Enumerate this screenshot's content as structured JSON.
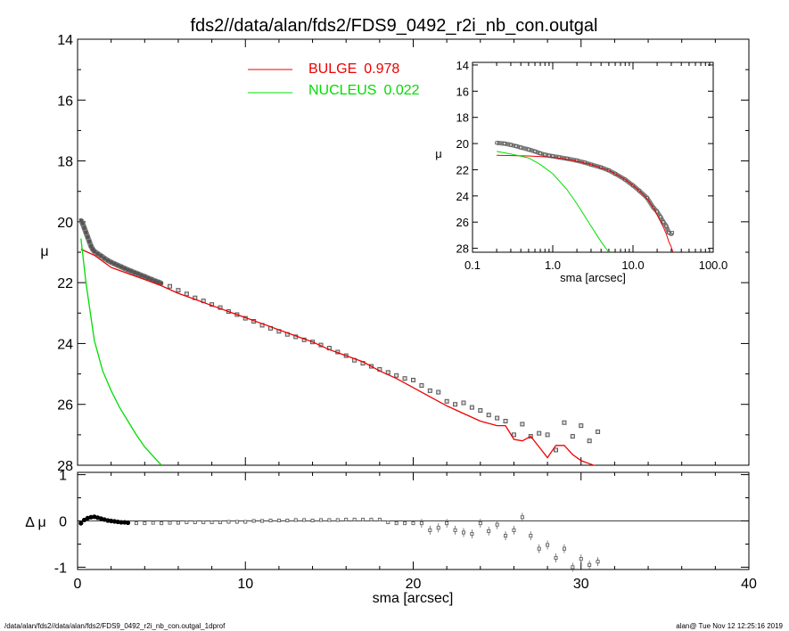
{
  "page": {
    "title": "fds2//data/alan/fds2/FDS9_0492_r2i_nb_con.outgal",
    "footer_left": "/data/alan/fds2//data/alan/fds2/FDS9_0492_r2i_nb_con.outgal_1dprof",
    "footer_right": "alan@  Tue Nov 12 12:25:16 2019"
  },
  "colors": {
    "bulge": "#ee0000",
    "nucleus": "#00dd00",
    "data": "#808080",
    "axis": "#000000"
  },
  "chart_data": [
    {
      "id": "main",
      "type": "scatter",
      "ylabel": "μ",
      "xlim": [
        0,
        40
      ],
      "ylim": [
        28,
        14
      ],
      "y_inverted": true,
      "xticks": [
        0,
        10,
        20,
        30,
        40
      ],
      "yticks": [
        14,
        16,
        18,
        20,
        22,
        24,
        26,
        28
      ],
      "ytick_labels": [
        "14",
        "16",
        "18",
        "20",
        "22",
        "24",
        "26",
        "28"
      ],
      "legend": {
        "placement": "top-center",
        "entries": [
          {
            "label": "BULGE",
            "value": "0.978",
            "color": "#ee0000"
          },
          {
            "label": "NUCLEUS",
            "value": "0.022",
            "color": "#00dd00"
          }
        ]
      },
      "series": [
        {
          "name": "BULGE",
          "style": "line",
          "color": "#ee0000",
          "x": [
            0.2,
            1,
            2,
            3,
            4,
            5,
            6,
            7,
            8,
            9,
            10,
            11,
            12,
            13,
            14,
            15,
            16,
            17,
            18,
            19,
            20,
            21,
            22,
            23,
            24,
            25,
            25.5,
            26,
            26.5,
            27,
            27.5,
            28,
            28.5,
            29,
            29.5,
            30,
            30.5,
            31,
            31.5
          ],
          "y": [
            20.9,
            21.1,
            21.5,
            21.7,
            21.9,
            22.1,
            22.35,
            22.55,
            22.75,
            22.95,
            23.15,
            23.35,
            23.55,
            23.75,
            23.95,
            24.2,
            24.4,
            24.6,
            24.9,
            25.15,
            25.45,
            25.75,
            26.05,
            26.3,
            26.55,
            26.7,
            26.7,
            27.15,
            27.2,
            27.05,
            27.4,
            27.75,
            27.35,
            27.35,
            27.65,
            27.85,
            27.95,
            28.05,
            28.15
          ]
        },
        {
          "name": "NUCLEUS",
          "style": "line",
          "color": "#00dd00",
          "x": [
            0.2,
            0.5,
            1,
            1.5,
            2,
            2.5,
            3,
            3.5,
            4,
            4.5,
            5
          ],
          "y": [
            20.55,
            22.0,
            23.9,
            24.9,
            25.55,
            26.1,
            26.55,
            27.0,
            27.4,
            27.7,
            28.0
          ]
        },
        {
          "name": "data",
          "style": "markers",
          "color": "#808080",
          "x": [
            0.2,
            0.3,
            0.4,
            0.5,
            0.6,
            0.7,
            0.8,
            0.9,
            1.0,
            1.2,
            1.4,
            1.6,
            1.8,
            2.0,
            2.2,
            2.4,
            2.6,
            2.8,
            3.0,
            3.2,
            3.4,
            3.6,
            3.8,
            4.0,
            4.2,
            4.4,
            4.6,
            4.8,
            5.0,
            5.5,
            6,
            6.5,
            7,
            7.5,
            8,
            8.5,
            9,
            9.5,
            10,
            10.5,
            11,
            11.5,
            12,
            12.5,
            13,
            13.5,
            14,
            14.5,
            15,
            15.5,
            16,
            16.5,
            17,
            17.5,
            18,
            18.5,
            19,
            19.5,
            20,
            20.5,
            21,
            21.5,
            22,
            22.5,
            23,
            23.5,
            24,
            24.5,
            25,
            25.5,
            26,
            26.5,
            27,
            27.5,
            28,
            28.5,
            29,
            29.5,
            30,
            30.5,
            31
          ],
          "y": [
            19.95,
            20.05,
            20.2,
            20.35,
            20.5,
            20.65,
            20.8,
            20.9,
            20.97,
            21.05,
            21.12,
            21.2,
            21.27,
            21.33,
            21.38,
            21.43,
            21.48,
            21.53,
            21.58,
            21.62,
            21.67,
            21.71,
            21.76,
            21.8,
            21.85,
            21.89,
            21.94,
            21.98,
            22.02,
            22.12,
            22.25,
            22.37,
            22.5,
            22.6,
            22.72,
            22.82,
            22.95,
            23.05,
            23.17,
            23.27,
            23.4,
            23.5,
            23.6,
            23.7,
            23.78,
            23.88,
            23.95,
            24.05,
            24.15,
            24.28,
            24.4,
            24.55,
            24.65,
            24.75,
            24.85,
            24.95,
            25.05,
            25.15,
            25.2,
            25.38,
            25.55,
            25.6,
            25.9,
            26.0,
            25.95,
            26.1,
            26.2,
            26.35,
            26.45,
            26.55,
            27.0,
            26.65,
            27.05,
            26.95,
            27.0,
            27.5,
            26.6,
            27.05,
            26.7,
            27.2,
            26.9
          ]
        }
      ]
    },
    {
      "id": "residual",
      "type": "scatter",
      "ylabel": "Δ μ",
      "xlabel": "sma [arcsec]",
      "xlim": [
        0,
        40
      ],
      "ylim": [
        -1.05,
        1.05
      ],
      "xticks": [
        0,
        10,
        20,
        30,
        40
      ],
      "xtick_labels": [
        "0",
        "10",
        "20",
        "30",
        "40"
      ],
      "yticks": [
        -1,
        0,
        1
      ],
      "ytick_labels": [
        "-1",
        "0",
        "1"
      ],
      "zero_line": true,
      "series": [
        {
          "name": "residual",
          "style": "markers",
          "color": "#000000",
          "x": [
            0.2,
            0.4,
            0.6,
            0.8,
            1.0,
            1.2,
            1.4,
            1.6,
            1.8,
            2.0,
            2.2,
            2.4,
            2.6,
            2.8,
            3.0,
            3.5,
            4,
            4.5,
            5,
            5.5,
            6,
            6.5,
            7,
            7.5,
            8,
            8.5,
            9,
            9.5,
            10,
            10.5,
            11,
            11.5,
            12,
            12.5,
            13,
            13.5,
            14,
            14.5,
            15,
            15.5,
            16,
            16.5,
            17,
            17.5,
            18,
            18.5,
            19,
            19.5,
            20,
            20.5,
            21,
            21.5,
            22,
            22.5,
            23,
            23.5,
            24,
            24.5,
            25,
            25.5,
            26,
            26.5,
            27,
            27.5,
            28,
            28.5,
            29,
            29.5,
            30,
            30.5,
            31
          ],
          "y": [
            -0.05,
            0.02,
            0.06,
            0.08,
            0.09,
            0.07,
            0.05,
            0.03,
            0.01,
            0.0,
            -0.01,
            -0.02,
            -0.03,
            -0.03,
            -0.04,
            -0.05,
            -0.05,
            -0.04,
            -0.05,
            -0.04,
            -0.04,
            -0.03,
            -0.03,
            -0.03,
            -0.03,
            -0.03,
            -0.02,
            -0.02,
            -0.02,
            0.0,
            0.0,
            0.01,
            0.01,
            0.01,
            0.02,
            0.02,
            0.01,
            0.02,
            0.02,
            0.02,
            0.03,
            0.03,
            0.03,
            0.03,
            0.03,
            -0.03,
            -0.05,
            -0.05,
            -0.05,
            -0.05,
            -0.2,
            -0.15,
            -0.05,
            -0.2,
            -0.25,
            -0.28,
            -0.05,
            -0.22,
            -0.08,
            -0.32,
            -0.2,
            0.08,
            -0.32,
            -0.6,
            -0.52,
            -0.8,
            -0.6,
            -1.0,
            -0.82,
            -0.95,
            -0.88
          ]
        }
      ]
    },
    {
      "id": "inset",
      "type": "scatter",
      "ylabel": "μ",
      "xlabel": "sma [arcsec]",
      "xscale": "log",
      "xlim": [
        0.1,
        100
      ],
      "ylim": [
        28.3,
        13.8
      ],
      "y_inverted": true,
      "xticks": [
        0.1,
        1,
        10,
        100
      ],
      "xtick_labels": [
        "0.1",
        "1.0",
        "10.0",
        "100.0"
      ],
      "yticks": [
        14,
        16,
        18,
        20,
        22,
        24,
        26,
        28
      ],
      "ytick_labels": [
        "14",
        "16",
        "18",
        "20",
        "22",
        "24",
        "26",
        "28"
      ],
      "series": [
        {
          "name": "data",
          "style": "markers",
          "color": "#808080",
          "x": [
            0.2,
            0.25,
            0.3,
            0.35,
            0.4,
            0.5,
            0.6,
            0.7,
            0.8,
            0.9,
            1.0,
            1.2,
            1.5,
            2,
            2.5,
            3,
            4,
            5,
            6,
            8,
            10,
            12,
            15,
            18,
            20,
            22,
            24,
            26,
            28,
            30,
            31
          ],
          "y": [
            19.95,
            20.0,
            20.1,
            20.2,
            20.3,
            20.45,
            20.6,
            20.75,
            20.85,
            20.92,
            20.97,
            21.05,
            21.15,
            21.3,
            21.45,
            21.6,
            21.82,
            22.05,
            22.3,
            22.75,
            23.2,
            23.6,
            24.15,
            24.9,
            25.2,
            25.6,
            26.0,
            26.3,
            26.8,
            26.9,
            26.8
          ]
        },
        {
          "name": "BULGE",
          "style": "line",
          "color": "#ee0000",
          "x": [
            0.2,
            0.5,
            1.0,
            1.5,
            2,
            3,
            4,
            5,
            6,
            8,
            10,
            12,
            15,
            18,
            20,
            22,
            24,
            26,
            28,
            30,
            31.5
          ],
          "y": [
            20.9,
            20.95,
            21.05,
            21.2,
            21.35,
            21.6,
            21.85,
            22.05,
            22.3,
            22.75,
            23.2,
            23.6,
            24.2,
            24.9,
            25.45,
            25.95,
            26.4,
            26.9,
            27.5,
            27.9,
            28.3
          ]
        },
        {
          "name": "NUCLEUS",
          "style": "line",
          "color": "#00dd00",
          "x": [
            0.2,
            0.3,
            0.5,
            0.7,
            1.0,
            1.5,
            2,
            3,
            4,
            5
          ],
          "y": [
            20.6,
            20.8,
            21.1,
            21.6,
            22.3,
            23.5,
            24.6,
            26.3,
            27.5,
            28.3
          ]
        }
      ]
    }
  ]
}
